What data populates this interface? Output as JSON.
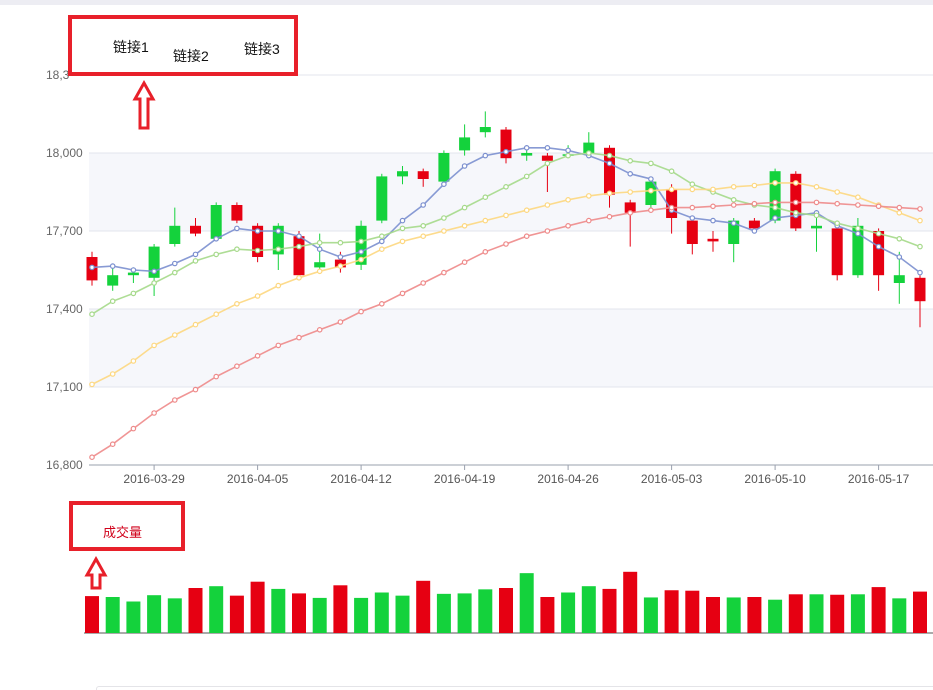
{
  "links": [
    "链接1",
    "链接2",
    "链接3"
  ],
  "volume_label": "成交量",
  "colors": {
    "up": "#e60012",
    "down": "#14d23c",
    "ma5": "#7b8fcf",
    "ma10": "#a5d98a",
    "ma20": "#fdd77f",
    "ma30": "#ee8a8a",
    "annotation": "#e8202a"
  },
  "chart_data": [
    {
      "type": "candlestick",
      "title": "",
      "ylim": [
        16800,
        18300
      ],
      "yticks": [
        "16,800",
        "17,100",
        "17,400",
        "17,700",
        "18,000",
        "18,3"
      ],
      "ytick_values": [
        16800,
        17100,
        17400,
        17700,
        18000,
        18300
      ],
      "xtick_labels": [
        "2016-03-29",
        "2016-04-05",
        "2016-04-12",
        "2016-04-19",
        "2016-04-26",
        "2016-05-03",
        "2016-05-10",
        "2016-05-17"
      ],
      "xtick_index": [
        3,
        8,
        13,
        18,
        23,
        28,
        33,
        38
      ],
      "grid": true,
      "candles": [
        {
          "o": 17600,
          "c": 17510,
          "h": 17620,
          "l": 17490,
          "dir": "down"
        },
        {
          "o": 17490,
          "c": 17530,
          "h": 17560,
          "l": 17470,
          "dir": "up"
        },
        {
          "o": 17530,
          "c": 17540,
          "h": 17560,
          "l": 17500,
          "dir": "up"
        },
        {
          "o": 17520,
          "c": 17640,
          "h": 17650,
          "l": 17450,
          "dir": "up"
        },
        {
          "o": 17650,
          "c": 17720,
          "h": 17790,
          "l": 17640,
          "dir": "up"
        },
        {
          "o": 17720,
          "c": 17690,
          "h": 17750,
          "l": 17680,
          "dir": "down"
        },
        {
          "o": 17670,
          "c": 17800,
          "h": 17810,
          "l": 17660,
          "dir": "up"
        },
        {
          "o": 17800,
          "c": 17740,
          "h": 17810,
          "l": 17730,
          "dir": "down"
        },
        {
          "o": 17720,
          "c": 17600,
          "h": 17730,
          "l": 17580,
          "dir": "down"
        },
        {
          "o": 17610,
          "c": 17720,
          "h": 17730,
          "l": 17550,
          "dir": "up"
        },
        {
          "o": 17680,
          "c": 17530,
          "h": 17700,
          "l": 17510,
          "dir": "down"
        },
        {
          "o": 17560,
          "c": 17580,
          "h": 17690,
          "l": 17550,
          "dir": "up"
        },
        {
          "o": 17590,
          "c": 17560,
          "h": 17620,
          "l": 17540,
          "dir": "down"
        },
        {
          "o": 17570,
          "c": 17720,
          "h": 17740,
          "l": 17550,
          "dir": "up"
        },
        {
          "o": 17740,
          "c": 17910,
          "h": 17920,
          "l": 17730,
          "dir": "up"
        },
        {
          "o": 17910,
          "c": 17930,
          "h": 17950,
          "l": 17880,
          "dir": "up"
        },
        {
          "o": 17930,
          "c": 17900,
          "h": 17940,
          "l": 17870,
          "dir": "down"
        },
        {
          "o": 17890,
          "c": 18000,
          "h": 18010,
          "l": 17880,
          "dir": "up"
        },
        {
          "o": 18010,
          "c": 18060,
          "h": 18110,
          "l": 17990,
          "dir": "up"
        },
        {
          "o": 18080,
          "c": 18100,
          "h": 18160,
          "l": 18060,
          "dir": "up"
        },
        {
          "o": 18090,
          "c": 17980,
          "h": 18100,
          "l": 17960,
          "dir": "down"
        },
        {
          "o": 17990,
          "c": 18000,
          "h": 18020,
          "l": 17970,
          "dir": "up"
        },
        {
          "o": 17990,
          "c": 17970,
          "h": 18000,
          "l": 17850,
          "dir": "down"
        },
        {
          "o": 17990,
          "c": 17995,
          "h": 18030,
          "l": 17980,
          "dir": "up"
        },
        {
          "o": 18000,
          "c": 18040,
          "h": 18080,
          "l": 17980,
          "dir": "up"
        },
        {
          "o": 18020,
          "c": 17840,
          "h": 18030,
          "l": 17790,
          "dir": "down"
        },
        {
          "o": 17810,
          "c": 17770,
          "h": 17820,
          "l": 17640,
          "dir": "down"
        },
        {
          "o": 17800,
          "c": 17890,
          "h": 17900,
          "l": 17780,
          "dir": "up"
        },
        {
          "o": 17860,
          "c": 17750,
          "h": 17880,
          "l": 17690,
          "dir": "down"
        },
        {
          "o": 17740,
          "c": 17650,
          "h": 17740,
          "l": 17610,
          "dir": "down"
        },
        {
          "o": 17670,
          "c": 17660,
          "h": 17700,
          "l": 17620,
          "dir": "down"
        },
        {
          "o": 17650,
          "c": 17740,
          "h": 17750,
          "l": 17580,
          "dir": "up"
        },
        {
          "o": 17740,
          "c": 17710,
          "h": 17750,
          "l": 17700,
          "dir": "down"
        },
        {
          "o": 17740,
          "c": 17930,
          "h": 17940,
          "l": 17730,
          "dir": "up"
        },
        {
          "o": 17920,
          "c": 17710,
          "h": 17930,
          "l": 17700,
          "dir": "down"
        },
        {
          "o": 17710,
          "c": 17720,
          "h": 17780,
          "l": 17620,
          "dir": "up"
        },
        {
          "o": 17710,
          "c": 17530,
          "h": 17720,
          "l": 17510,
          "dir": "down"
        },
        {
          "o": 17530,
          "c": 17720,
          "h": 17750,
          "l": 17520,
          "dir": "up"
        },
        {
          "o": 17700,
          "c": 17530,
          "h": 17710,
          "l": 17470,
          "dir": "down"
        },
        {
          "o": 17500,
          "c": 17530,
          "h": 17620,
          "l": 17420,
          "dir": "up"
        },
        {
          "o": 17520,
          "c": 17430,
          "h": 17530,
          "l": 17330,
          "dir": "down"
        }
      ],
      "series": [
        {
          "key": "ma5",
          "values": [
            17560,
            17565,
            17550,
            17545,
            17575,
            17610,
            17670,
            17710,
            17700,
            17700,
            17680,
            17630,
            17600,
            17620,
            17660,
            17740,
            17800,
            17880,
            17950,
            17990,
            18005,
            18020,
            18020,
            18010,
            17990,
            17960,
            17920,
            17900,
            17780,
            17750,
            17740,
            17730,
            17700,
            17750,
            17760,
            17770,
            17720,
            17690,
            17640,
            17600,
            17540
          ]
        },
        {
          "key": "ma10",
          "values": [
            17380,
            17430,
            17460,
            17500,
            17540,
            17585,
            17610,
            17630,
            17625,
            17630,
            17640,
            17655,
            17655,
            17660,
            17680,
            17710,
            17720,
            17750,
            17790,
            17830,
            17870,
            17910,
            17960,
            17990,
            18000,
            17990,
            17970,
            17960,
            17930,
            17880,
            17850,
            17820,
            17800,
            17790,
            17770,
            17760,
            17730,
            17710,
            17690,
            17670,
            17640
          ]
        },
        {
          "key": "ma20",
          "values": [
            17110,
            17150,
            17200,
            17260,
            17300,
            17340,
            17380,
            17420,
            17450,
            17490,
            17520,
            17545,
            17565,
            17590,
            17630,
            17660,
            17680,
            17700,
            17720,
            17740,
            17760,
            17780,
            17800,
            17820,
            17835,
            17845,
            17850,
            17855,
            17860,
            17860,
            17860,
            17870,
            17875,
            17885,
            17885,
            17870,
            17850,
            17830,
            17800,
            17770,
            17740
          ]
        },
        {
          "key": "ma30",
          "values": [
            16830,
            16880,
            16940,
            17000,
            17050,
            17090,
            17140,
            17180,
            17220,
            17260,
            17290,
            17320,
            17350,
            17390,
            17420,
            17460,
            17500,
            17540,
            17580,
            17620,
            17650,
            17680,
            17700,
            17720,
            17740,
            17755,
            17770,
            17780,
            17790,
            17790,
            17795,
            17800,
            17805,
            17810,
            17810,
            17810,
            17805,
            17800,
            17795,
            17790,
            17785
          ]
        }
      ]
    },
    {
      "type": "bar",
      "title": "成交量",
      "values": [
        0.82,
        0.8,
        0.7,
        0.84,
        0.77,
        1.0,
        1.04,
        0.83,
        1.14,
        0.98,
        0.88,
        0.78,
        1.06,
        0.78,
        0.9,
        0.83,
        1.16,
        0.87,
        0.88,
        0.97,
        1.0,
        1.33,
        0.8,
        0.9,
        1.04,
        0.98,
        1.36,
        0.79,
        0.95,
        0.94,
        0.8,
        0.79,
        0.8,
        0.74,
        0.86,
        0.86,
        0.85,
        0.86,
        1.02,
        0.77,
        0.92
      ],
      "colors_by_dir": true
    }
  ]
}
